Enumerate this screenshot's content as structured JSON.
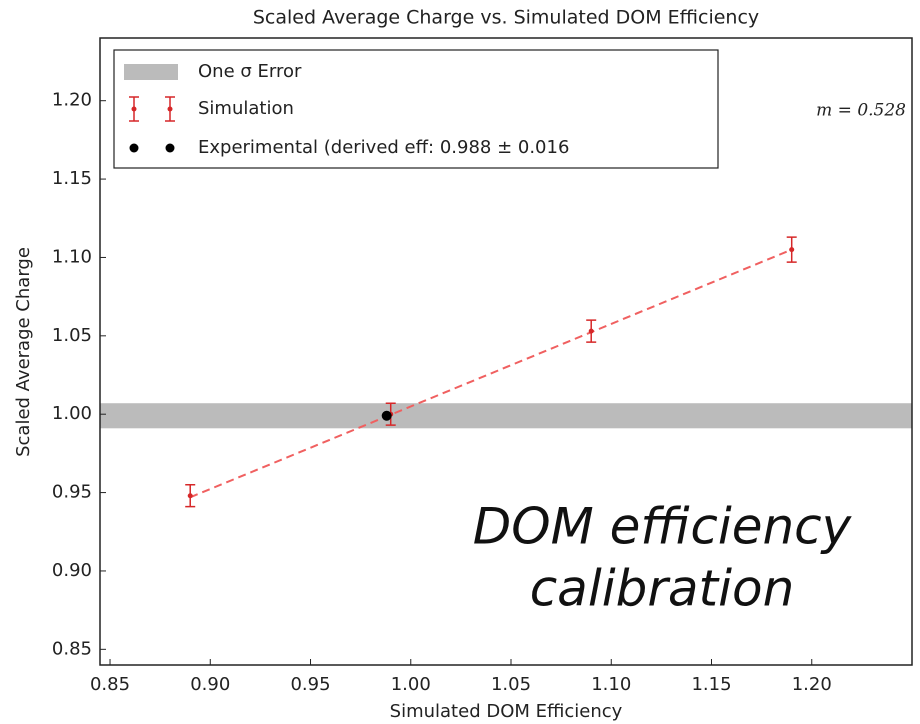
{
  "chart_data": {
    "type": "scatter",
    "title": "Scaled Average Charge vs. Simulated DOM Efficiency",
    "xlabel": "Simulated DOM Efficiency",
    "ylabel": "Scaled Average Charge",
    "xlim": [
      0.845,
      1.25
    ],
    "ylim": [
      0.84,
      1.24
    ],
    "xticks": [
      {
        "value": 0.85,
        "label": "0.85"
      },
      {
        "value": 0.9,
        "label": "0.90"
      },
      {
        "value": 0.95,
        "label": "0.95"
      },
      {
        "value": 1.0,
        "label": "1.00"
      },
      {
        "value": 1.05,
        "label": "1.05"
      },
      {
        "value": 1.1,
        "label": "1.10"
      },
      {
        "value": 1.15,
        "label": "1.15"
      },
      {
        "value": 1.2,
        "label": "1.20"
      }
    ],
    "yticks": [
      {
        "value": 0.85,
        "label": "0.85"
      },
      {
        "value": 0.9,
        "label": "0.90"
      },
      {
        "value": 0.95,
        "label": "0.95"
      },
      {
        "value": 1.0,
        "label": "1.00"
      },
      {
        "value": 1.05,
        "label": "1.05"
      },
      {
        "value": 1.1,
        "label": "1.10"
      },
      {
        "value": 1.15,
        "label": "1.15"
      },
      {
        "value": 1.2,
        "label": "1.20"
      }
    ],
    "band": {
      "name": "One σ Error",
      "color": "#bbbbbb",
      "ymin": 0.991,
      "ymax": 1.007
    },
    "series": [
      {
        "name": "Simulation",
        "color": "#d62728",
        "x": [
          0.89,
          0.99,
          1.09,
          1.19
        ],
        "values": [
          0.948,
          1.0,
          1.053,
          1.105
        ],
        "errors": [
          0.007,
          0.007,
          0.007,
          0.008
        ]
      },
      {
        "name": "Experimental (derived eff: 0.988 ± 0.016",
        "color": "#000000",
        "x": [
          0.988
        ],
        "values": [
          0.999
        ]
      }
    ],
    "fit_line": {
      "color": "#f06060",
      "x": [
        0.89,
        1.19
      ],
      "values": [
        0.947,
        1.105
      ]
    },
    "annotation": "m = 0.528",
    "overlay_text": [
      "DOM efficiency",
      "calibration"
    ]
  }
}
